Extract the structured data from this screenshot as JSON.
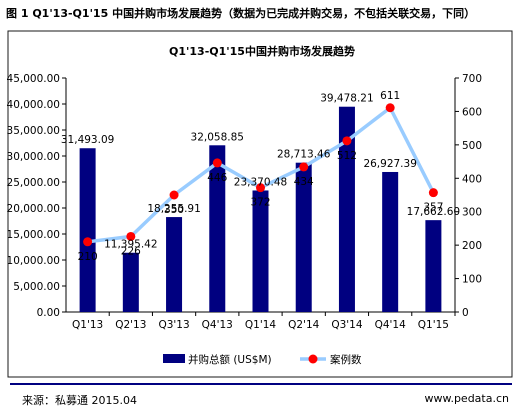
{
  "figure_caption": "图 1 Q1'13-Q1'15 中国并购市场发展趋势（数据为已完成并购交易，不包括关联交易，下同）",
  "source": "来源：私募通 2015.04",
  "website": "www.pedata.cn",
  "colors": {
    "bar": "#000080",
    "line": "#99ccff",
    "marker": "#ff0000",
    "frame": "#1a1a1a",
    "bottom_rule": "#000080"
  },
  "chart_data": {
    "type": "bar",
    "title": "Q1'13-Q1'15中国并购市场发展趋势",
    "categories": [
      "Q1'13",
      "Q2'13",
      "Q3'13",
      "Q4'13",
      "Q1'14",
      "Q2'14",
      "Q3'14",
      "Q4'14",
      "Q1'15"
    ],
    "bar_value_labels": [
      "31,493.09",
      "11,395.42",
      "18,255.91",
      "32,058.85",
      "23,370.48",
      "28,713.46",
      "39,478.21",
      "26,927.39",
      "17,662.60"
    ],
    "count_labels": [
      "210",
      "226",
      "350",
      "446",
      "372",
      "434",
      "512",
      "611",
      "357"
    ],
    "series": [
      {
        "name": "并购总额 (US$M)",
        "type": "bar",
        "axis": "left",
        "values": [
          31493.09,
          11395.42,
          18255.91,
          32058.85,
          23370.48,
          28713.46,
          39478.21,
          26927.39,
          17662.6
        ]
      },
      {
        "name": "案例数",
        "type": "line",
        "axis": "right",
        "values": [
          210,
          226,
          350,
          446,
          372,
          434,
          512,
          611,
          357
        ]
      }
    ],
    "y_left": {
      "range": [
        0,
        45000
      ],
      "ticks": [
        "0.00",
        "5,000.00",
        "10,000.00",
        "15,000.00",
        "20,000.00",
        "25,000.00",
        "30,000.00",
        "35,000.00",
        "40,000.00",
        "45,000.00"
      ]
    },
    "y_right": {
      "range": [
        0,
        700
      ],
      "ticks": [
        "0",
        "100",
        "200",
        "300",
        "400",
        "500",
        "600",
        "700"
      ]
    },
    "grid": false,
    "legend_position": "bottom"
  }
}
